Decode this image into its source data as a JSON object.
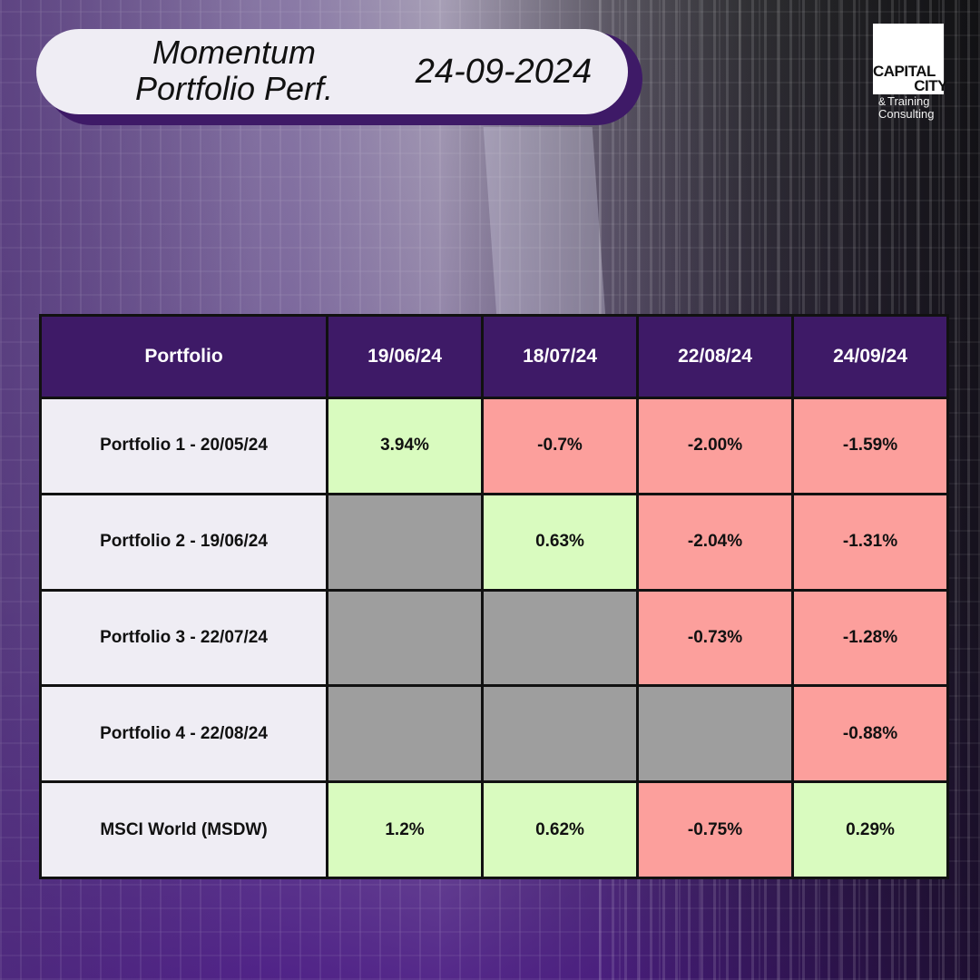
{
  "header": {
    "title": "Momentum Portfolio Perf.",
    "date": "24-09-2024"
  },
  "logo": {
    "line1": "CAPITAL",
    "line2": "CITY",
    "amp": "&",
    "line3": "Training",
    "line4": "Consulting"
  },
  "colors": {
    "header_bg": "#3e1a67",
    "positive": "#d9fbbf",
    "negative": "#fc9f9c",
    "not_applicable": "#9e9e9e",
    "label_bg": "#efedf4"
  },
  "chart_data": {
    "type": "table",
    "columns": [
      "Portfolio",
      "19/06/24",
      "18/07/24",
      "22/08/24",
      "24/09/24"
    ],
    "rows": [
      {
        "label": "Portfolio 1 - 20/05/24",
        "values": [
          "3.94%",
          "-0.7%",
          "-2.00%",
          "-1.59%"
        ]
      },
      {
        "label": "Portfolio 2 - 19/06/24",
        "values": [
          null,
          "0.63%",
          "-2.04%",
          "-1.31%"
        ]
      },
      {
        "label": "Portfolio 3 - 22/07/24",
        "values": [
          null,
          null,
          "-0.73%",
          "-1.28%"
        ]
      },
      {
        "label": "Portfolio 4 - 22/08/24",
        "values": [
          null,
          null,
          null,
          "-0.88%"
        ]
      },
      {
        "label": "MSCI World (MSDW)",
        "values": [
          "1.2%",
          "0.62%",
          "-0.75%",
          "0.29%"
        ]
      }
    ]
  }
}
